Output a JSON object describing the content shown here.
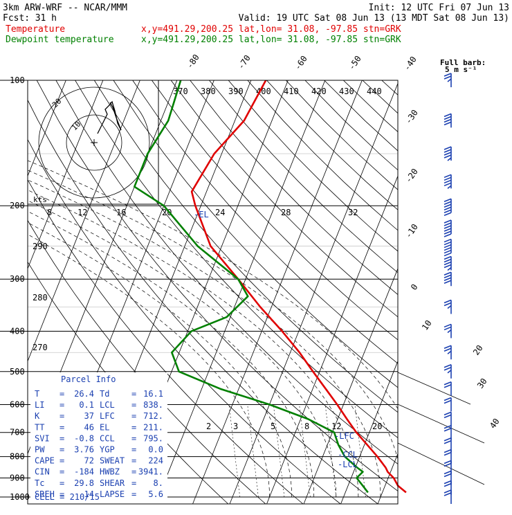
{
  "header": {
    "model": "3km ARW-WRF -- NCAR/MMM",
    "init": "Init: 12 UTC Fri 07 Jun 13",
    "fcst_label": "Fcst:",
    "fcst_value": "31 h",
    "valid": "Valid: 19 UTC Sat 08 Jun 13 (13 MDT Sat 08 Jun 13)"
  },
  "legend": [
    {
      "label": "Temperature",
      "meta": "x,y=491.29,200.25   lat,lon= 31.08, -97.85   stn=GRK",
      "color": "#e00000"
    },
    {
      "label": "Dewpoint temperature",
      "meta": "x,y=491.29,200.25   lat,lon= 31.08, -97.85   stn=GRK",
      "color": "#008000"
    }
  ],
  "barb_caption": {
    "line1": "Full barb:",
    "line2": "5 m s⁻¹"
  },
  "hodograph": {
    "units": "kts",
    "rings": [
      "10",
      "20"
    ]
  },
  "annotations": {
    "el": "-EL",
    "lfc": "-LFC",
    "ccl": "-CCL",
    "lcl": "-LCL"
  },
  "parcel_info": {
    "title": "Parcel Info",
    "rows": [
      {
        "k1": "T",
        "v1": "26.4",
        "k2": "Td",
        "v2": "16.1"
      },
      {
        "k1": "LI",
        "v1": "0.1",
        "k2": "LCL",
        "v2": "838."
      },
      {
        "k1": "K",
        "v1": "37",
        "k2": "LFC",
        "v2": "712."
      },
      {
        "k1": "TT",
        "v1": "46",
        "k2": "EL",
        "v2": "211."
      },
      {
        "k1": "SVI",
        "v1": "-0.8",
        "k2": "CCL",
        "v2": "795."
      },
      {
        "k1": "PW",
        "v1": "3.76",
        "k2": "YGP",
        "v2": "0.0"
      },
      {
        "k1": "CAPE",
        "v1": "72",
        "k2": "SWEAT",
        "v2": "224"
      },
      {
        "k1": "CIN",
        "v1": "-184",
        "k2": "HWBZ",
        "v2": "3941."
      },
      {
        "k1": "Tc",
        "v1": "29.8",
        "k2": "SHEAR",
        "v2": "8."
      },
      {
        "k1": "SREH",
        "v1": "14",
        "k2": "LAPSE",
        "v2": "5.6"
      }
    ],
    "cell": "CELL = 210/15"
  },
  "chart_data": {
    "type": "line",
    "pressure_levels": [
      "100",
      "200",
      "300",
      "400",
      "500",
      "600",
      "700",
      "800",
      "900",
      "1000"
    ],
    "temperature_ticks": [
      "-80",
      "-70",
      "-60",
      "-50",
      "-40",
      "-30",
      "-20",
      "-10",
      "0",
      "10",
      "20",
      "30",
      "40"
    ],
    "theta_labels": [
      "370",
      "380",
      "390",
      "400",
      "410",
      "420",
      "430",
      "440"
    ],
    "dry_adiabat_labels": [
      "290",
      "280",
      "270"
    ],
    "mixing_ratio_labels_upper": [
      "8",
      "12",
      "16",
      "20",
      "24",
      "28",
      "32"
    ],
    "mixing_ratio_labels_lower": [
      "2",
      "3",
      "5",
      "8",
      "12",
      "20"
    ],
    "series": [
      {
        "name": "Temperature",
        "color": "#e00000",
        "pressure": [
          975,
          940,
          900,
          870,
          850,
          800,
          750,
          700,
          650,
          600,
          550,
          500,
          450,
          400,
          350,
          300,
          250,
          200,
          185,
          150,
          125,
          100
        ],
        "temperature": [
          26.4,
          23.5,
          21.5,
          19.2,
          18.2,
          14.8,
          10.8,
          6.5,
          2.5,
          -1.7,
          -6.5,
          -11.8,
          -17.5,
          -24.5,
          -33.0,
          -42.0,
          -53.0,
          -61.5,
          -64.0,
          -62.0,
          -57.5,
          -56.0
        ]
      },
      {
        "name": "Dewpoint temperature",
        "color": "#008000",
        "pressure": [
          975,
          940,
          900,
          870,
          850,
          800,
          750,
          700,
          650,
          600,
          550,
          500,
          450,
          400,
          370,
          330,
          300,
          250,
          200,
          180,
          150,
          125,
          100
        ],
        "temperature": [
          16.1,
          14.0,
          11.5,
          12.5,
          10.5,
          6.0,
          3.0,
          0.5,
          -8.0,
          -20.0,
          -35.0,
          -48.0,
          -52.0,
          -49.0,
          -41.0,
          -37.5,
          -42.0,
          -56.5,
          -70.0,
          -80.0,
          -80.0,
          -78.0,
          -79.0
        ]
      }
    ],
    "wind_barbs": [
      {
        "pressure": 100,
        "speed_kt": 15
      },
      {
        "pressure": 125,
        "speed_kt": 20
      },
      {
        "pressure": 150,
        "speed_kt": 25
      },
      {
        "pressure": 175,
        "speed_kt": 25
      },
      {
        "pressure": 200,
        "speed_kt": 30
      },
      {
        "pressure": 225,
        "speed_kt": 30
      },
      {
        "pressure": 250,
        "speed_kt": 30
      },
      {
        "pressure": 275,
        "speed_kt": 25
      },
      {
        "pressure": 300,
        "speed_kt": 20
      },
      {
        "pressure": 350,
        "speed_kt": 15
      },
      {
        "pressure": 400,
        "speed_kt": 15
      },
      {
        "pressure": 450,
        "speed_kt": 15
      },
      {
        "pressure": 500,
        "speed_kt": 15
      },
      {
        "pressure": 550,
        "speed_kt": 10
      },
      {
        "pressure": 600,
        "speed_kt": 10
      },
      {
        "pressure": 650,
        "speed_kt": 10
      },
      {
        "pressure": 700,
        "speed_kt": 10
      },
      {
        "pressure": 750,
        "speed_kt": 10
      },
      {
        "pressure": 800,
        "speed_kt": 10
      },
      {
        "pressure": 850,
        "speed_kt": 10
      },
      {
        "pressure": 900,
        "speed_kt": 10
      },
      {
        "pressure": 950,
        "speed_kt": 10
      },
      {
        "pressure": 1000,
        "speed_kt": 10
      }
    ],
    "colors": {
      "temperature": "#e00000",
      "dewpoint": "#008000",
      "barbs": "#1a3fb0",
      "info": "#1a3fb0"
    }
  }
}
